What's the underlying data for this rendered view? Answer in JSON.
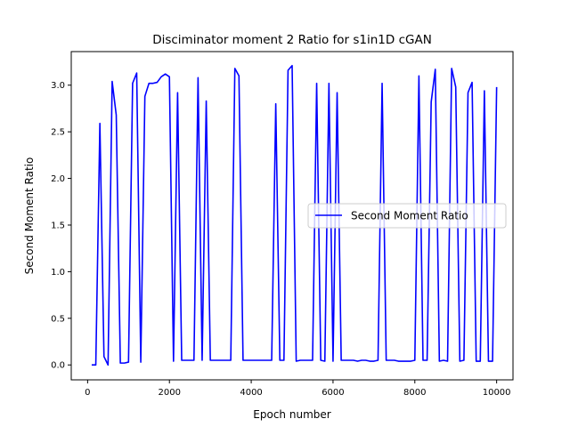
{
  "chart_data": {
    "type": "line",
    "title": "Disciminator moment 2 Ratio for s1in1D cGAN",
    "xlabel": "Epoch number",
    "ylabel": "Second Moment Ratio",
    "xlim": [
      -400,
      10400
    ],
    "ylim": [
      -0.16,
      3.36
    ],
    "xticks": [
      0,
      2000,
      4000,
      6000,
      8000,
      10000
    ],
    "xtick_labels": [
      "0",
      "2000",
      "4000",
      "6000",
      "8000",
      "10000"
    ],
    "yticks": [
      0.0,
      0.5,
      1.0,
      1.5,
      2.0,
      2.5,
      3.0
    ],
    "ytick_labels": [
      "0.0",
      "0.5",
      "1.0",
      "1.5",
      "2.0",
      "2.5",
      "3.0"
    ],
    "grid": false,
    "legend_position": "center-right",
    "series": [
      {
        "name": "Second Moment Ratio",
        "color": "#0000ff",
        "x": [
          100,
          200,
          300,
          400,
          500,
          600,
          700,
          800,
          900,
          1000,
          1100,
          1200,
          1300,
          1400,
          1500,
          1600,
          1700,
          1800,
          1900,
          2000,
          2100,
          2200,
          2300,
          2400,
          2500,
          2600,
          2700,
          2800,
          2900,
          3000,
          3100,
          3200,
          3300,
          3400,
          3500,
          3600,
          3700,
          3800,
          3900,
          4000,
          4100,
          4200,
          4300,
          4400,
          4500,
          4600,
          4700,
          4800,
          4900,
          5000,
          5100,
          5200,
          5300,
          5400,
          5500,
          5600,
          5700,
          5800,
          5900,
          6000,
          6100,
          6200,
          6300,
          6400,
          6500,
          6600,
          6700,
          6800,
          6900,
          7000,
          7100,
          7200,
          7300,
          7400,
          7500,
          7600,
          7700,
          7800,
          7900,
          8000,
          8100,
          8200,
          8300,
          8400,
          8500,
          8600,
          8700,
          8800,
          8900,
          9000,
          9100,
          9200,
          9300,
          9400,
          9500,
          9600,
          9700,
          9800,
          9900,
          10000
        ],
        "y": [
          0.0,
          0.0,
          2.59,
          0.09,
          0.0,
          3.04,
          2.68,
          0.02,
          0.02,
          0.03,
          3.02,
          3.13,
          0.03,
          2.88,
          3.02,
          3.02,
          3.03,
          3.09,
          3.12,
          3.09,
          0.04,
          2.92,
          0.05,
          0.05,
          0.05,
          0.05,
          3.08,
          0.05,
          2.83,
          0.05,
          0.05,
          0.05,
          0.05,
          0.05,
          0.05,
          3.18,
          3.1,
          0.05,
          0.05,
          0.05,
          0.05,
          0.05,
          0.05,
          0.05,
          0.05,
          2.8,
          0.05,
          0.05,
          3.16,
          3.21,
          0.04,
          0.05,
          0.05,
          0.05,
          0.05,
          3.02,
          0.05,
          0.04,
          3.02,
          0.04,
          2.92,
          0.05,
          0.05,
          0.05,
          0.05,
          0.04,
          0.05,
          0.05,
          0.04,
          0.04,
          0.05,
          3.02,
          0.05,
          0.05,
          0.05,
          0.04,
          0.04,
          0.04,
          0.04,
          0.05,
          3.1,
          0.05,
          0.05,
          2.82,
          3.17,
          0.04,
          0.05,
          0.04,
          3.18,
          2.98,
          0.04,
          0.05,
          2.92,
          3.03,
          0.04,
          0.04,
          2.94,
          0.04,
          0.04,
          2.98
        ]
      }
    ]
  }
}
